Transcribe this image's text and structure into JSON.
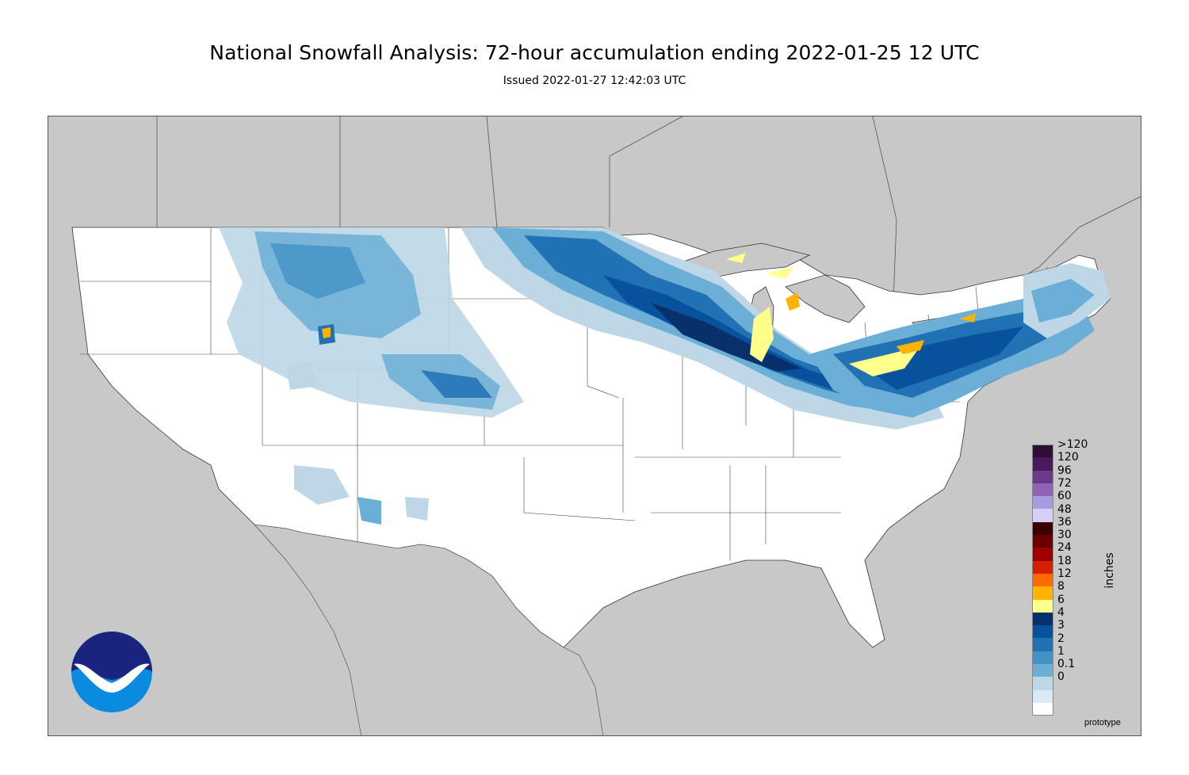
{
  "title": "National Snowfall Analysis: 72-hour accumulation ending 2022-01-25 12 UTC",
  "subtitle": "Issued 2022-01-27 12:42:03 UTC",
  "legend": {
    "unit": "inches",
    "levels": [
      {
        "label": ">120",
        "color": "#2d0e36"
      },
      {
        "label": "120",
        "color": "#4a1a5c"
      },
      {
        "label": "96",
        "color": "#6b3a8c"
      },
      {
        "label": "72",
        "color": "#8f63b8"
      },
      {
        "label": "60",
        "color": "#a99be0"
      },
      {
        "label": "48",
        "color": "#d6d0f8"
      },
      {
        "label": "36",
        "color": "#3b0000"
      },
      {
        "label": "30",
        "color": "#6b0000"
      },
      {
        "label": "24",
        "color": "#9e0000"
      },
      {
        "label": "18",
        "color": "#d81e05"
      },
      {
        "label": "12",
        "color": "#ff6a00"
      },
      {
        "label": "8",
        "color": "#ffb300"
      },
      {
        "label": "6",
        "color": "#ffff8a"
      },
      {
        "label": "4",
        "color": "#08306b"
      },
      {
        "label": "3",
        "color": "#08519c"
      },
      {
        "label": "2",
        "color": "#2171b5"
      },
      {
        "label": "1",
        "color": "#4292c6"
      },
      {
        "label": "0.1",
        "color": "#6baed6"
      },
      {
        "label": "0",
        "color": "#bdd7e7"
      },
      {
        "label": "",
        "color": "#dbe9f6"
      },
      {
        "label": "",
        "color": "#ffffff"
      }
    ]
  },
  "map": {
    "ocean_color": "#c8c8c8",
    "land_color": "#ffffff",
    "border_color": "#555555"
  },
  "logo": {
    "text": "NOAA",
    "colors": [
      "#1a237e",
      "#0a8be0",
      "#ffffff"
    ]
  },
  "footer_note": "prototype"
}
